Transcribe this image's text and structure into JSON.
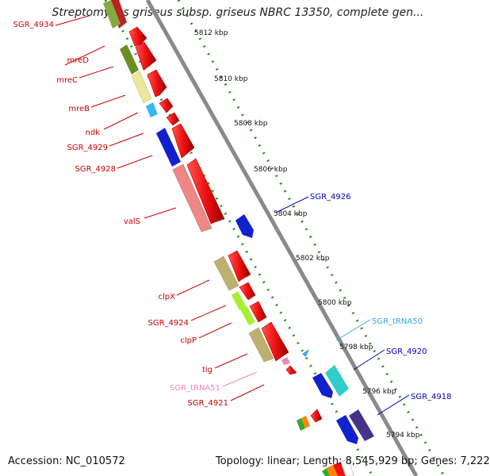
{
  "title": "Streptomyces griseus subsp. griseus NBRC 13350, complete gen...",
  "footer": {
    "accession": "Accession: NC_010572",
    "topology": "Topology: linear; Length: 8,545,929 bp; Genes: 7,222"
  },
  "colors": {
    "axis": "#8a8a8a",
    "ruler": "#2e8b22",
    "left_label": "#cc0000",
    "right_label": "#0000bb",
    "trna_label": "#33aadd",
    "trna51_label": "#ee88bb"
  },
  "ticks": [
    "5812 kbp",
    "5810 kbp",
    "5808 kbp",
    "5806 kbp",
    "5804 kbp",
    "5802 kbp",
    "5800 kbp",
    "5798 kbp",
    "5796 kbp",
    "5794 kbp"
  ],
  "left_labels": [
    "SGR_4934",
    "mreD",
    "mreC",
    "mreB",
    "ndk",
    "SGR_4929",
    "SGR_4928",
    "valS",
    "clpX",
    "SGR_4924",
    "clpP",
    "tig",
    "SGR_tRNA51",
    "SGR_4921"
  ],
  "right_labels": [
    "SGR_4926",
    "SGR_tRNA50",
    "SGR_4920",
    "SGR_4918"
  ]
}
